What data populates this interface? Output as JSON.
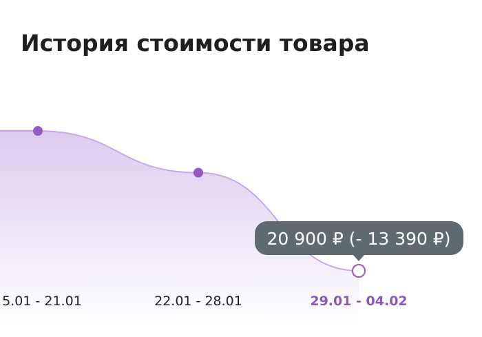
{
  "chart_data": {
    "type": "line",
    "title": "История стоимости товара",
    "categories": [
      "5.01 - 21.01",
      "22.01 - 28.01",
      "29.01 - 04.02"
    ],
    "values": [
      34290,
      30300,
      20900
    ],
    "color": "#8e5cc4",
    "highlight_color": "#8a5cb8",
    "tooltip": "20 900 ₽ (- 13 390 ₽)"
  }
}
